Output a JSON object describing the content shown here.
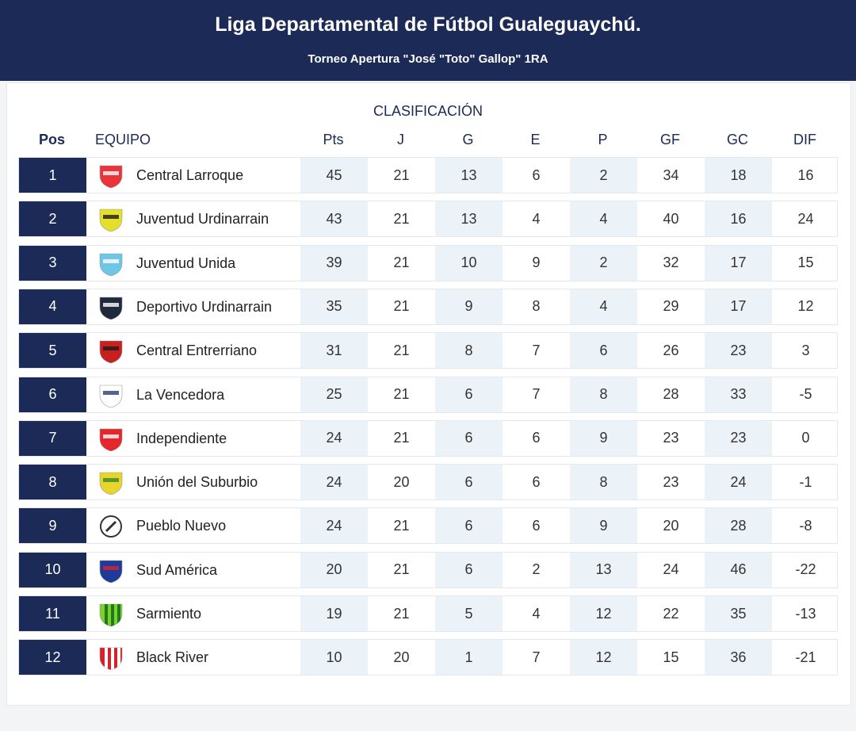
{
  "header": {
    "title": "Liga Departamental de Fútbol Gualeguaychú.",
    "subtitle": "Torneo Apertura \"José \"Toto\" Gallop\" 1RA"
  },
  "table": {
    "caption": "CLASIFICACIÓN",
    "columns": [
      "Pos",
      "EQUIPO",
      "Pts",
      "J",
      "G",
      "E",
      "P",
      "GF",
      "GC",
      "DIF"
    ],
    "rows": [
      {
        "pos": "1",
        "team": "Central Larroque",
        "crest": "red-shield-crest",
        "crest_colors": [
          "#e8343a",
          "#ffffff"
        ],
        "stats": [
          "45",
          "21",
          "13",
          "6",
          "2",
          "34",
          "18",
          "16"
        ]
      },
      {
        "pos": "2",
        "team": "Juventud Urdinarrain",
        "crest": "yellow-black-crest",
        "crest_colors": [
          "#e4e02a",
          "#1a1a1a"
        ],
        "stats": [
          "43",
          "21",
          "13",
          "4",
          "4",
          "40",
          "16",
          "24"
        ]
      },
      {
        "pos": "3",
        "team": "Juventud Unida",
        "crest": "skyblue-white-crest",
        "crest_colors": [
          "#6ec6e6",
          "#ffffff"
        ],
        "stats": [
          "39",
          "21",
          "10",
          "9",
          "2",
          "32",
          "17",
          "15"
        ]
      },
      {
        "pos": "4",
        "team": "Deportivo Urdinarrain",
        "crest": "navy-shield-crest",
        "crest_colors": [
          "#1e2a3c",
          "#ffffff"
        ],
        "stats": [
          "35",
          "21",
          "9",
          "8",
          "4",
          "29",
          "17",
          "12"
        ]
      },
      {
        "pos": "5",
        "team": "Central Entrerriano",
        "crest": "red-black-crest",
        "crest_colors": [
          "#c8201f",
          "#1a1a1a"
        ],
        "stats": [
          "31",
          "21",
          "8",
          "7",
          "6",
          "26",
          "23",
          "3"
        ]
      },
      {
        "pos": "6",
        "team": "La Vencedora",
        "crest": "white-blue-v-crest",
        "crest_colors": [
          "#ffffff",
          "#2b3a78"
        ],
        "stats": [
          "25",
          "21",
          "6",
          "7",
          "8",
          "28",
          "33",
          "-5"
        ]
      },
      {
        "pos": "7",
        "team": "Independiente",
        "crest": "red-crest",
        "crest_colors": [
          "#e5262b",
          "#ffffff"
        ],
        "stats": [
          "24",
          "21",
          "6",
          "6",
          "9",
          "23",
          "23",
          "0"
        ]
      },
      {
        "pos": "8",
        "team": "Unión del Suburbio",
        "crest": "green-yellow-crest",
        "crest_colors": [
          "#e8d42a",
          "#2f8a2e"
        ],
        "stats": [
          "24",
          "20",
          "6",
          "6",
          "8",
          "23",
          "24",
          "-1"
        ]
      },
      {
        "pos": "9",
        "team": "Pueblo Nuevo",
        "crest": "laurel-crest",
        "crest_colors": [
          "#ffffff",
          "#333333"
        ],
        "stats": [
          "24",
          "21",
          "6",
          "6",
          "9",
          "20",
          "28",
          "-8"
        ]
      },
      {
        "pos": "10",
        "team": "Sud América",
        "crest": "blue-red-crest",
        "crest_colors": [
          "#1e3a9a",
          "#d6262b"
        ],
        "stats": [
          "20",
          "21",
          "6",
          "2",
          "13",
          "24",
          "46",
          "-22"
        ]
      },
      {
        "pos": "11",
        "team": "Sarmiento",
        "crest": "green-yellow-stripes-crest",
        "crest_colors": [
          "#7bd12a",
          "#1f7a1f"
        ],
        "stats": [
          "19",
          "21",
          "5",
          "4",
          "12",
          "22",
          "35",
          "-13"
        ]
      },
      {
        "pos": "12",
        "team": "Black River",
        "crest": "red-white-stripes-crest",
        "crest_colors": [
          "#d9202a",
          "#ffffff"
        ],
        "stats": [
          "10",
          "20",
          "1",
          "7",
          "12",
          "15",
          "36",
          "-21"
        ]
      }
    ]
  }
}
